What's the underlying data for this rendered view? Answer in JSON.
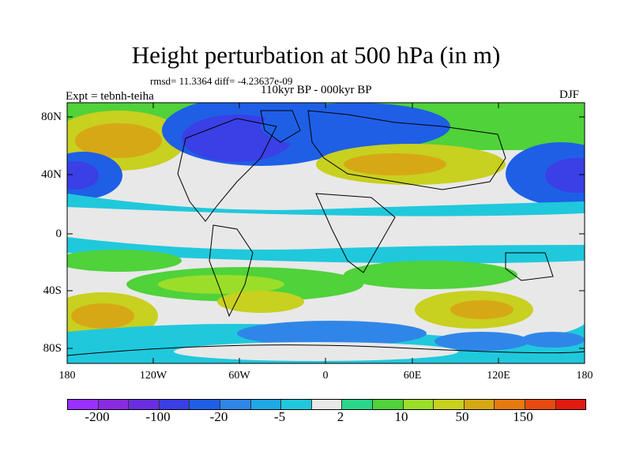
{
  "title": "Height perturbation at 500 hPa (in m)",
  "stats": "rmsd= 11.3364 diff= -4.23637e-09",
  "period": "110kyr BP - 000kyr BP",
  "expt": "Expt = tebnh-teiha",
  "season": "DJF",
  "lat_labels": [
    "80N",
    "40N",
    "0",
    "40S",
    "80S"
  ],
  "lon_labels": [
    "180",
    "120W",
    "60W",
    "0",
    "60E",
    "120E",
    "180"
  ],
  "colorbar": {
    "colors": [
      "#9b30ff",
      "#8a2be2",
      "#6a2ee0",
      "#3a3fe6",
      "#1f5fe6",
      "#2f86e8",
      "#1fa8e6",
      "#20c8dc",
      "#e8e8e8",
      "#2ad68a",
      "#4fd23a",
      "#9ade2a",
      "#c8d020",
      "#d7a815",
      "#e67a10",
      "#e84a10",
      "#e21a10"
    ],
    "labels": [
      "-200",
      "-100",
      "-20",
      "-5",
      "2",
      "10",
      "50",
      "150"
    ]
  }
}
